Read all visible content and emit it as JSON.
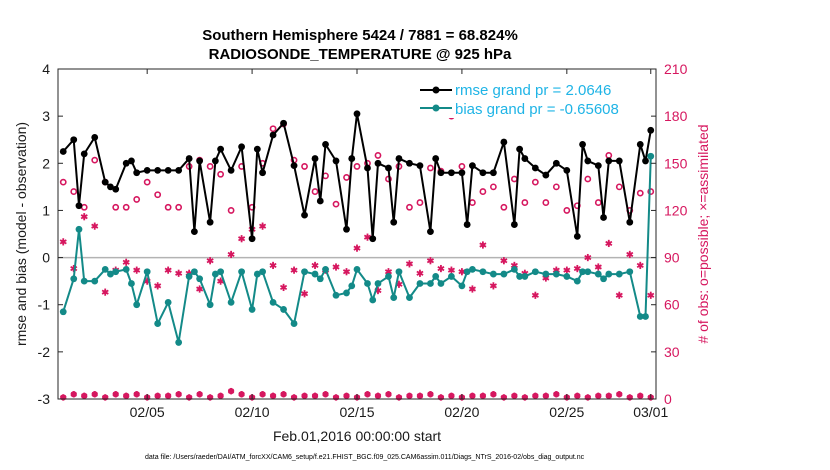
{
  "chart_data": {
    "type": "line",
    "title_lines": [
      "Southern Hemisphere 5424 / 7881 = 68.824%",
      "RADIOSONDE_TEMPERATURE @ 925 hPa"
    ],
    "xlabel": "Feb.01,2016 00:00:00 start",
    "ylabel": "rmse and bias (model - observation)",
    "ylabel_right": "# of obs: o=possible; ×=assimilated",
    "footer": "data file: /Users/raeder/DAI/ATM_forcXX/CAM6_setup/f.e21.FHIST_BGC.f09_025.CAM6assim.011/Diags_NTrS_2016-02/obs_diag_output.nc",
    "xlim": [
      0.75,
      29.25
    ],
    "ylim": [
      -3,
      4
    ],
    "ylim_right": [
      0,
      210
    ],
    "x_ticks": [
      5,
      10,
      15,
      20,
      25,
      29
    ],
    "x_tick_labels": [
      "02/05",
      "02/10",
      "02/15",
      "02/20",
      "02/25",
      "03/01"
    ],
    "y_ticks": [
      -3,
      -2,
      -1,
      0,
      1,
      2,
      3,
      4
    ],
    "y_tick_labels": [
      "-3",
      "-2",
      "-1",
      "0",
      "1",
      "2",
      "3",
      "4"
    ],
    "y_right_ticks": [
      0,
      30,
      60,
      90,
      120,
      150,
      180,
      210
    ],
    "y_right_tick_labels": [
      "0",
      "30",
      "60",
      "90",
      "120",
      "150",
      "180",
      "210"
    ],
    "colors": {
      "rmse": "#000000",
      "bias": "#138a88",
      "counts": "#d6175f",
      "legend_text": "#1fb4e6",
      "zero_line": "#b3b3b3"
    },
    "series": [
      {
        "name": "rmse grand pr = 2.0646",
        "axis": "left",
        "color": "#000000",
        "x": [
          1.0,
          1.5,
          1.75,
          2.0,
          2.5,
          3.0,
          3.25,
          3.5,
          4.0,
          4.25,
          4.5,
          5.0,
          5.5,
          6.0,
          6.5,
          7.0,
          7.25,
          7.5,
          8.0,
          8.25,
          8.5,
          9.0,
          9.5,
          10.0,
          10.25,
          10.5,
          11.0,
          11.5,
          12.0,
          12.5,
          13.0,
          13.25,
          13.5,
          14.0,
          14.5,
          14.75,
          15.0,
          15.5,
          15.75,
          16.0,
          16.5,
          16.75,
          17.0,
          17.5,
          18.0,
          18.5,
          18.75,
          19.0,
          19.5,
          20.0,
          20.25,
          20.5,
          21.0,
          21.5,
          22.0,
          22.5,
          22.75,
          23.0,
          23.5,
          24.0,
          24.5,
          25.0,
          25.5,
          25.75,
          26.0,
          26.5,
          26.75,
          27.0,
          27.5,
          28.0,
          28.5,
          28.75,
          29.0
        ],
        "y": [
          2.25,
          2.5,
          1.1,
          2.2,
          2.55,
          1.6,
          1.5,
          1.45,
          2.0,
          2.05,
          1.8,
          1.85,
          1.85,
          1.85,
          1.85,
          2.1,
          0.55,
          2.05,
          0.75,
          2.05,
          2.3,
          1.85,
          2.35,
          0.4,
          2.3,
          1.8,
          2.6,
          2.85,
          1.95,
          0.9,
          2.1,
          1.2,
          2.4,
          2.05,
          0.6,
          2.1,
          3.05,
          1.9,
          0.4,
          2.0,
          1.9,
          0.75,
          2.1,
          2.0,
          1.95,
          0.55,
          2.1,
          1.8,
          1.8,
          1.8,
          0.7,
          1.95,
          1.8,
          1.8,
          2.45,
          0.7,
          2.3,
          2.1,
          1.9,
          1.75,
          2.0,
          1.85,
          0.45,
          2.4,
          2.05,
          1.95,
          0.85,
          2.05,
          2.05,
          0.75,
          2.4,
          2.05,
          2.7
        ]
      },
      {
        "name": "bias grand pr = -0.65608",
        "axis": "left",
        "color": "#138a88",
        "x": [
          1.0,
          1.5,
          1.75,
          2.0,
          2.5,
          3.0,
          3.25,
          3.5,
          4.0,
          4.25,
          4.5,
          5.0,
          5.5,
          6.0,
          6.5,
          7.0,
          7.25,
          7.5,
          8.0,
          8.25,
          8.5,
          9.0,
          9.5,
          10.0,
          10.25,
          10.5,
          11.0,
          11.5,
          12.0,
          12.5,
          13.0,
          13.25,
          13.5,
          14.0,
          14.5,
          14.75,
          15.0,
          15.5,
          15.75,
          16.0,
          16.5,
          16.75,
          17.0,
          17.5,
          18.0,
          18.5,
          18.75,
          19.0,
          19.5,
          20.0,
          20.25,
          20.5,
          21.0,
          21.5,
          22.0,
          22.5,
          22.75,
          23.0,
          23.5,
          24.0,
          24.5,
          25.0,
          25.5,
          25.75,
          26.0,
          26.5,
          26.75,
          27.0,
          27.5,
          28.0,
          28.5,
          28.75,
          29.0
        ],
        "y": [
          -1.15,
          -0.45,
          0.6,
          -0.5,
          -0.5,
          -0.25,
          -0.35,
          -0.3,
          -0.25,
          -0.55,
          -1.0,
          -0.3,
          -1.4,
          -0.95,
          -1.8,
          -0.4,
          -0.3,
          -0.45,
          -1.0,
          -0.35,
          -0.3,
          -0.95,
          -0.3,
          -1.1,
          -0.35,
          -0.3,
          -0.95,
          -1.1,
          -1.4,
          -0.3,
          -0.35,
          -0.45,
          -0.25,
          -0.8,
          -0.75,
          -0.6,
          -0.25,
          -0.55,
          -0.9,
          -0.55,
          -0.4,
          -0.85,
          -0.3,
          -0.85,
          -0.55,
          -0.55,
          -0.4,
          -0.55,
          -0.4,
          -0.6,
          -0.3,
          -0.25,
          -0.3,
          -0.35,
          -0.35,
          -0.25,
          -0.4,
          -0.4,
          -0.3,
          -0.35,
          -0.35,
          -0.4,
          -0.5,
          -0.3,
          -0.3,
          -0.35,
          -0.45,
          -0.35,
          -0.35,
          -0.3,
          -1.25,
          -1.25,
          2.15
        ]
      },
      {
        "name": "possible obs",
        "axis": "right",
        "marker": "o",
        "color": "#d6175f",
        "x": [
          1.0,
          1.5,
          2.0,
          2.5,
          3.0,
          3.5,
          4.0,
          4.5,
          5.0,
          5.5,
          6.0,
          6.5,
          7.0,
          7.5,
          8.0,
          8.5,
          9.0,
          9.5,
          10.0,
          10.5,
          11.0,
          11.5,
          12.0,
          12.5,
          13.0,
          13.5,
          14.0,
          14.5,
          15.0,
          15.5,
          16.0,
          16.5,
          17.0,
          17.5,
          18.0,
          18.5,
          19.0,
          19.5,
          20.0,
          20.5,
          21.0,
          21.5,
          22.0,
          22.5,
          23.0,
          23.5,
          24.0,
          24.5,
          25.0,
          25.5,
          26.0,
          26.5,
          27.0,
          27.5,
          28.0,
          28.5,
          29.0
        ],
        "y": [
          138,
          132,
          122,
          152,
          138,
          122,
          122,
          127,
          138,
          130,
          122,
          122,
          148,
          152,
          148,
          143,
          120,
          148,
          122,
          150,
          172,
          175,
          152,
          148,
          132,
          142,
          124,
          141,
          148,
          150,
          155,
          140,
          148,
          122,
          125,
          147,
          145,
          180,
          148,
          125,
          132,
          135,
          122,
          140,
          125,
          138,
          125,
          135,
          120,
          123,
          140,
          125,
          155,
          135,
          120,
          131,
          132
        ]
      },
      {
        "name": "assimilated obs",
        "axis": "right",
        "marker": "*",
        "color": "#d6175f",
        "x": [
          1.0,
          1.5,
          2.0,
          2.5,
          3.0,
          3.5,
          4.0,
          4.5,
          5.0,
          5.5,
          6.0,
          6.5,
          7.0,
          7.5,
          8.0,
          8.5,
          9.0,
          9.5,
          10.0,
          10.5,
          11.0,
          11.5,
          12.0,
          12.5,
          13.0,
          13.5,
          14.0,
          14.5,
          15.0,
          15.5,
          16.0,
          16.5,
          17.0,
          17.5,
          18.0,
          18.5,
          19.0,
          19.5,
          20.0,
          20.5,
          21.0,
          21.5,
          22.0,
          22.5,
          23.0,
          23.5,
          24.0,
          24.5,
          25.0,
          25.5,
          26.0,
          26.5,
          27.0,
          27.5,
          28.0,
          28.5,
          29.0
        ],
        "y": [
          100,
          83,
          116,
          110,
          68,
          82,
          87,
          82,
          75,
          72,
          82,
          80,
          80,
          70,
          88,
          75,
          92,
          102,
          108,
          110,
          85,
          71,
          82,
          67,
          85,
          82,
          84,
          81,
          96,
          103,
          69,
          81,
          73,
          86,
          80,
          88,
          83,
          82,
          81,
          70,
          98,
          72,
          88,
          85,
          80,
          66,
          77,
          82,
          82,
          83,
          90,
          84,
          99,
          66,
          92,
          85,
          66
        ],
        "y_bottom": [
          1,
          3,
          2,
          3,
          1,
          3,
          2,
          3,
          1,
          2,
          2,
          3,
          1,
          3,
          1,
          2,
          5,
          3,
          1,
          3,
          2,
          3,
          1,
          2,
          2,
          3,
          1,
          2,
          1,
          3,
          2,
          3,
          1,
          2,
          2,
          3,
          1,
          2,
          1,
          2,
          2,
          3,
          1,
          2,
          1,
          2,
          2,
          3,
          1,
          2,
          1,
          2,
          2,
          3,
          1,
          2,
          1
        ]
      }
    ]
  }
}
